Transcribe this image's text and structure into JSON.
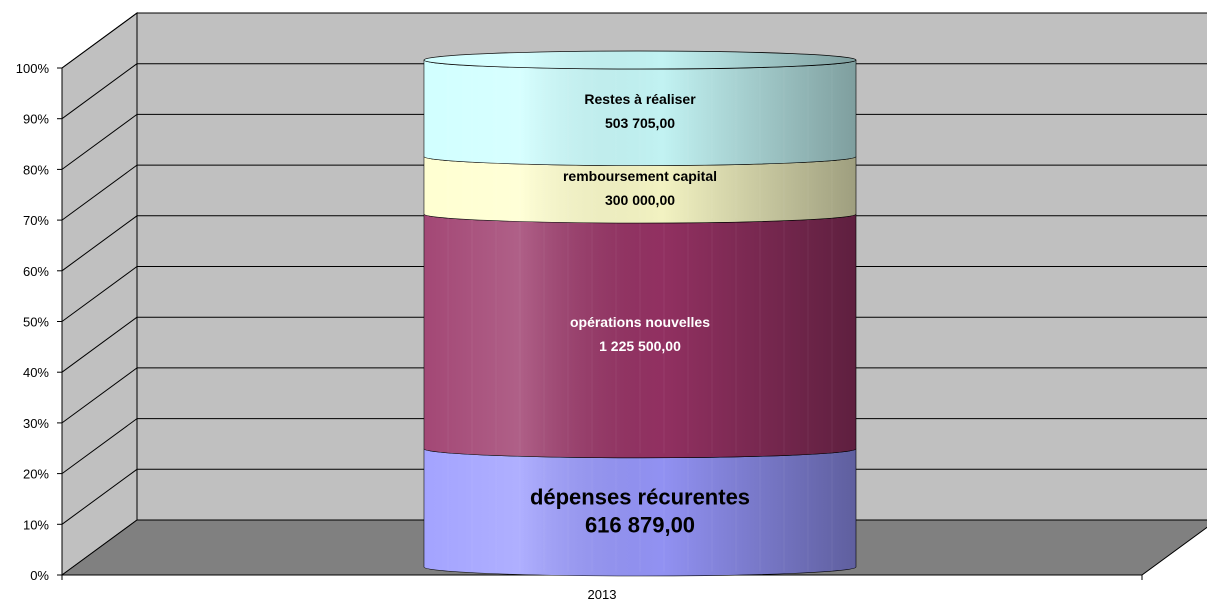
{
  "chart_data": {
    "type": "bar",
    "stacked": "percent",
    "style": "3d-cylinder",
    "categories": [
      "2013"
    ],
    "series": [
      {
        "name": "dépenses récurentes",
        "value_label": "616 879,00",
        "values": [
          616879.0
        ]
      },
      {
        "name": "opérations nouvelles",
        "value_label": "1 225 500,00",
        "values": [
          1225500.0
        ]
      },
      {
        "name": "remboursement capital",
        "value_label": "300 000,00",
        "values": [
          300000.0
        ]
      },
      {
        "name": "Restes à réaliser",
        "value_label": "503 705,00",
        "values": [
          503705.0
        ]
      }
    ],
    "y_ticks": [
      "0%",
      "10%",
      "20%",
      "30%",
      "40%",
      "50%",
      "60%",
      "70%",
      "80%",
      "90%",
      "100%"
    ],
    "ylim": [
      0,
      100
    ],
    "grid": true,
    "legend": "none",
    "title": "",
    "xlabel": "",
    "ylabel": ""
  },
  "colors": {
    "wall": "#c0c0c0",
    "floor": "#808080",
    "series": [
      "#9999ff",
      "#993366",
      "#ffffcc",
      "#ccffff"
    ],
    "label_text": [
      "#000000",
      "#ffffff",
      "#000000",
      "#000000"
    ]
  }
}
